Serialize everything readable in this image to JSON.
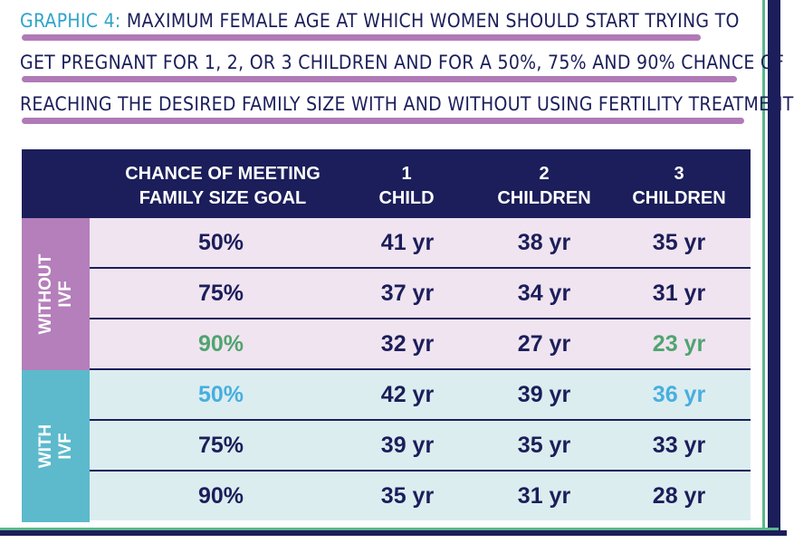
{
  "title": {
    "prefix": "Graphic 4:",
    "line1": "Maximum female age at which women should start trying to",
    "line2": "get pregnant for 1, 2, or 3 children and for a 50%, 75% and 90% chance of",
    "line3": "reaching the desired family size with and without using fertility treatment"
  },
  "colors": {
    "navy": "#1b1e5a",
    "without_label_bg": "#b47fba",
    "without_row_bg": "#f0e4f0",
    "with_label_bg": "#5cbacc",
    "with_row_bg": "#dcedf0",
    "accent_green": "#4fa46f",
    "accent_blue": "#47aee0",
    "title_underline": "#b07ab7"
  },
  "chart_data": {
    "type": "table",
    "columns": [
      {
        "line1": "CHANCE OF MEETING",
        "line2": "FAMILY SIZE GOAL"
      },
      {
        "line1": "1",
        "line2": "CHILD"
      },
      {
        "line1": "2",
        "line2": "CHILDREN"
      },
      {
        "line1": "3",
        "line2": "CHILDREN"
      }
    ],
    "groups": [
      {
        "label_line1": "WITHOUT",
        "label_line2": "IVF",
        "rows": [
          {
            "chance": "50%",
            "values": [
              "41 yr",
              "38 yr",
              "35 yr"
            ]
          },
          {
            "chance": "75%",
            "values": [
              "37 yr",
              "34 yr",
              "31 yr"
            ]
          },
          {
            "chance": "90%",
            "values": [
              "32 yr",
              "27 yr",
              "23 yr"
            ],
            "highlight": "green"
          }
        ]
      },
      {
        "label_line1": "WITH",
        "label_line2": "IVF",
        "rows": [
          {
            "chance": "50%",
            "values": [
              "42 yr",
              "39 yr",
              "36 yr"
            ],
            "highlight": "blue"
          },
          {
            "chance": "75%",
            "values": [
              "39 yr",
              "35 yr",
              "33 yr"
            ]
          },
          {
            "chance": "90%",
            "values": [
              "35 yr",
              "31 yr",
              "28 yr"
            ]
          }
        ]
      }
    ]
  }
}
